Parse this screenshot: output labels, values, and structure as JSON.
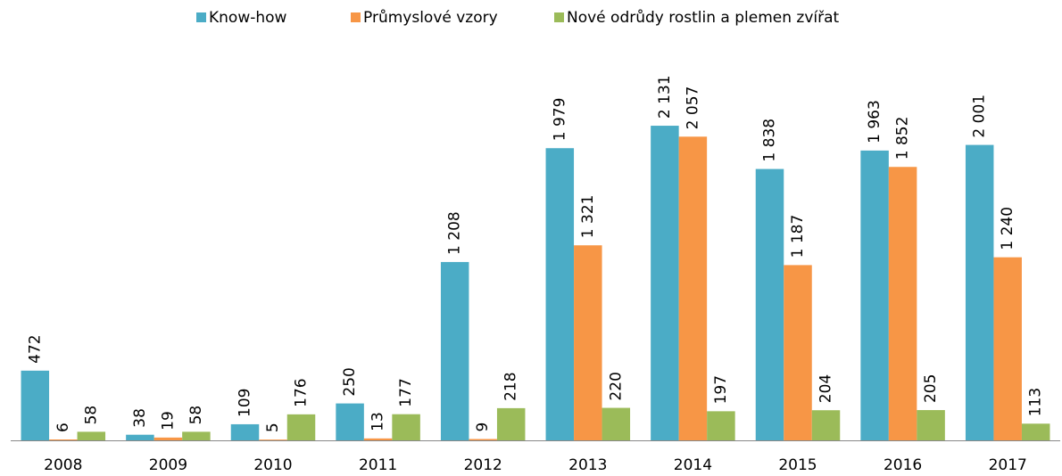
{
  "chart_data": {
    "type": "bar",
    "categories": [
      "2008",
      "2009",
      "2010",
      "2011",
      "2012",
      "2013",
      "2014",
      "2015",
      "2016",
      "2017"
    ],
    "series": [
      {
        "name": "Know-how",
        "color": "#4bacc6",
        "values": [
          472,
          38,
          109,
          250,
          1208,
          1979,
          2131,
          1838,
          1963,
          2001
        ],
        "value_labels": [
          "472",
          "38",
          "109",
          "250",
          "1 208",
          "1 979",
          "2 131",
          "1 838",
          "1 963",
          "2 001"
        ]
      },
      {
        "name": "Průmyslové vzory",
        "color": "#f79646",
        "values": [
          6,
          19,
          5,
          13,
          9,
          1321,
          2057,
          1187,
          1852,
          1240
        ],
        "value_labels": [
          "6",
          "19",
          "5",
          "13",
          "9",
          "1 321",
          "2 057",
          "1 187",
          "1 852",
          "1 240"
        ]
      },
      {
        "name": "Nové odrůdy rostlin a plemen zvířat",
        "color": "#9bbb59",
        "values": [
          58,
          58,
          176,
          177,
          218,
          220,
          197,
          204,
          205,
          113
        ],
        "value_labels": [
          "58",
          "58",
          "176",
          "177",
          "218",
          "220",
          "197",
          "204",
          "205",
          "113"
        ]
      }
    ],
    "ylim": [
      0,
      2400
    ],
    "legend": "top"
  }
}
